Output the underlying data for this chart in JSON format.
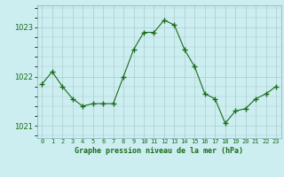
{
  "x": [
    0,
    1,
    2,
    3,
    4,
    5,
    6,
    7,
    8,
    9,
    10,
    11,
    12,
    13,
    14,
    15,
    16,
    17,
    18,
    19,
    20,
    21,
    22,
    23
  ],
  "y": [
    1021.85,
    1022.1,
    1021.8,
    1021.55,
    1021.4,
    1021.45,
    1021.45,
    1021.45,
    1022.0,
    1022.55,
    1022.9,
    1022.9,
    1023.15,
    1023.05,
    1022.55,
    1022.2,
    1021.65,
    1021.55,
    1021.05,
    1021.3,
    1021.35,
    1021.55,
    1021.65,
    1021.8
  ],
  "line_color": "#1a6b1a",
  "marker_color": "#1a6b1a",
  "bg_color": "#cceef0",
  "grid_color": "#aaccd0",
  "xlabel": "Graphe pression niveau de la mer (hPa)",
  "xlabel_color": "#1a6b1a",
  "tick_color": "#1a6b1a",
  "ylim": [
    1020.75,
    1023.45
  ],
  "yticks": [
    1021,
    1022,
    1023
  ],
  "xlim": [
    -0.5,
    23.5
  ],
  "xtick_labels": [
    "0",
    "1",
    "2",
    "3",
    "4",
    "5",
    "6",
    "7",
    "8",
    "9",
    "10",
    "11",
    "12",
    "13",
    "14",
    "15",
    "16",
    "17",
    "18",
    "19",
    "20",
    "21",
    "22",
    "23"
  ]
}
